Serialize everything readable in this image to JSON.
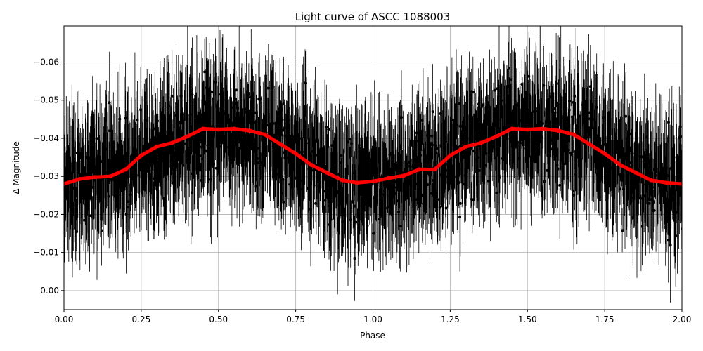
{
  "chart_data": {
    "type": "scatter",
    "title": "Light curve of ASCC 1088003",
    "xlabel": "Phase",
    "ylabel": "Δ Magnitude",
    "xlim": [
      0.0,
      2.0
    ],
    "ylim": [
      0.005,
      -0.0695
    ],
    "y_axis_inverted": true,
    "grid": true,
    "legend": "none",
    "x_ticks": [
      "0.00",
      "0.25",
      "0.50",
      "0.75",
      "1.00",
      "1.25",
      "1.50",
      "1.75",
      "2.00"
    ],
    "y_ticks": [
      "−0.06",
      "−0.05",
      "−0.04",
      "−0.03",
      "−0.02",
      "−0.01",
      "0.00"
    ],
    "series": [
      {
        "kind": "data-points-with-errorbars",
        "color": "#000000",
        "description_of_values": "dense phase-folded photometry scattered roughly ±0.03 mag around the mean curve with large vertical error bars"
      },
      {
        "kind": "binned-mean-curve",
        "color": "#ff0000",
        "x": [
          0.0,
          0.05,
          0.1,
          0.15,
          0.2,
          0.25,
          0.3,
          0.35,
          0.4,
          0.45,
          0.5,
          0.55,
          0.6,
          0.65,
          0.7,
          0.75,
          0.8,
          0.85,
          0.9,
          0.95,
          1.0,
          1.05,
          1.1,
          1.15,
          1.2,
          1.25,
          1.3,
          1.35,
          1.4,
          1.45,
          1.5,
          1.55,
          1.6,
          1.65,
          1.7,
          1.75,
          1.8,
          1.85,
          1.9,
          1.95,
          2.0
        ],
        "y": [
          -0.028,
          -0.0293,
          -0.0298,
          -0.03,
          -0.0318,
          -0.0355,
          -0.0378,
          -0.0388,
          -0.0405,
          -0.0425,
          -0.0423,
          -0.0425,
          -0.042,
          -0.041,
          -0.0385,
          -0.036,
          -0.033,
          -0.031,
          -0.029,
          -0.0283,
          -0.0287,
          -0.0295,
          -0.0302,
          -0.0318,
          -0.0318,
          -0.0355,
          -0.0378,
          -0.0388,
          -0.0405,
          -0.0425,
          -0.0423,
          -0.0425,
          -0.042,
          -0.041,
          -0.0385,
          -0.036,
          -0.033,
          -0.031,
          -0.029,
          -0.0283,
          -0.028
        ]
      }
    ]
  }
}
